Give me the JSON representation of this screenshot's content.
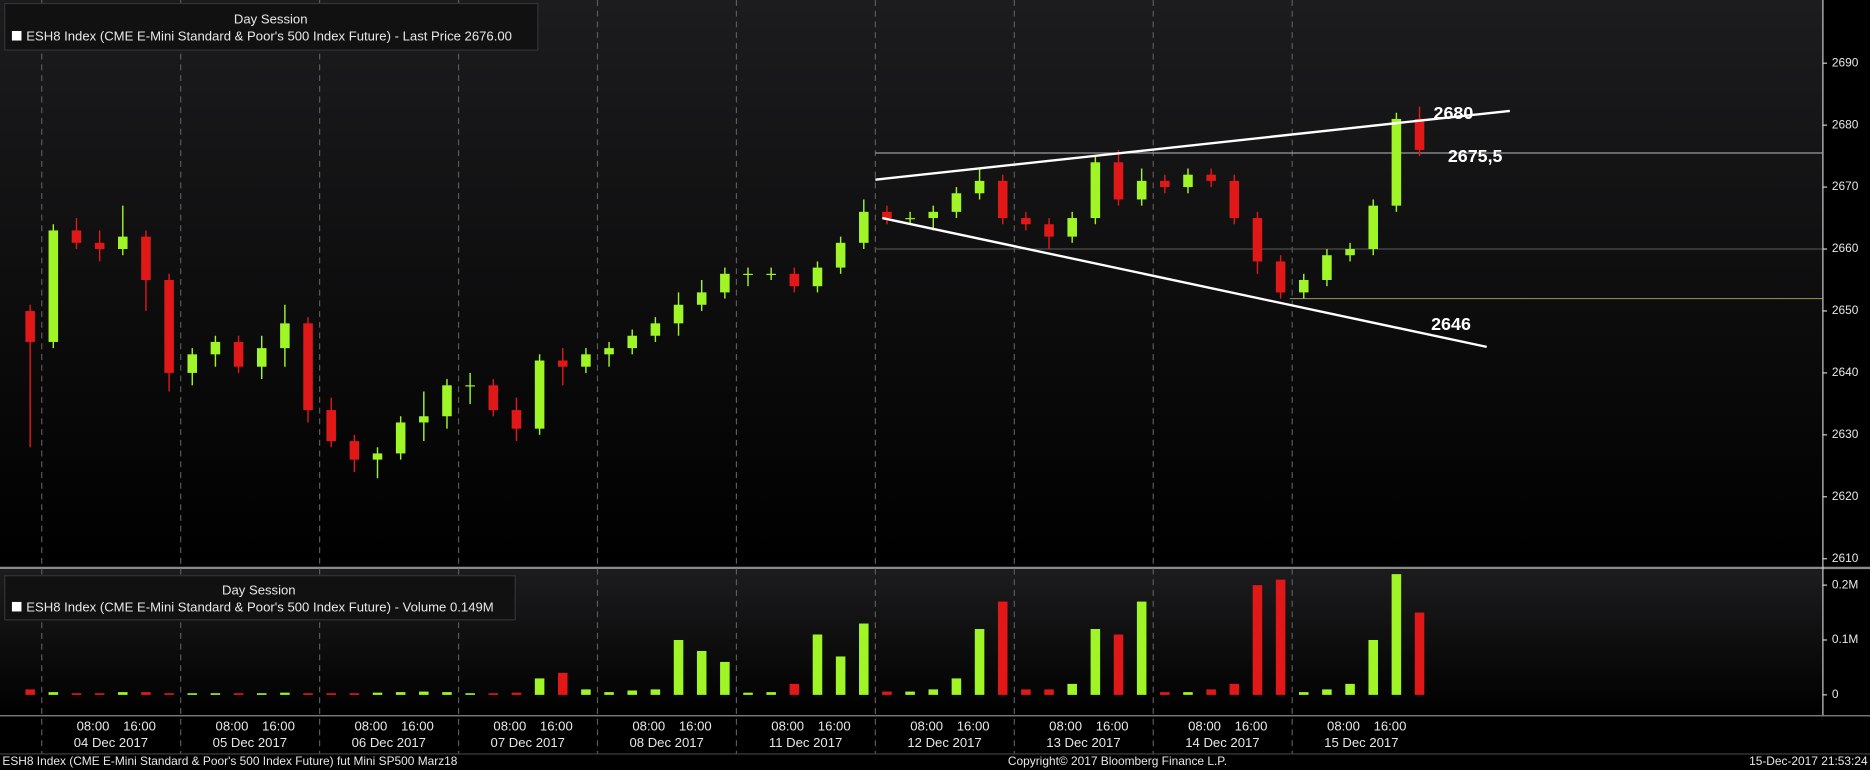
{
  "chart_data": [
    {
      "type": "candlestick",
      "legend_header": "Day Session",
      "legend": "ESH8 Index (CME E-Mini Standard & Poor's 500 Index Future) - Last Price 2676.00",
      "open": [
        2650,
        2645,
        2663,
        2661,
        2660,
        2662,
        2655,
        2640,
        2643,
        2645,
        2641,
        2644,
        2648,
        2634,
        2629,
        2626,
        2627,
        2632,
        2633,
        2638,
        2638,
        2634,
        2631,
        2642,
        2641,
        2643,
        2644,
        2646,
        2648,
        2651,
        2653,
        2656,
        2656,
        2656,
        2654,
        2657,
        2661,
        2666,
        2665,
        2665,
        2666,
        2669,
        2671,
        2665,
        2664,
        2662,
        2665,
        2674,
        2668,
        2671,
        2670,
        2672,
        2671,
        2665,
        2658,
        2653,
        2655,
        2659,
        2660,
        2667,
        2681
      ],
      "high": [
        2651,
        2664,
        2665,
        2663,
        2667,
        2663,
        2656,
        2644,
        2646,
        2646,
        2646,
        2651,
        2649,
        2636,
        2630,
        2628,
        2633,
        2637,
        2639,
        2640,
        2639,
        2636,
        2643,
        2644,
        2644,
        2645,
        2647,
        2649,
        2653,
        2655,
        2657,
        2657,
        2657,
        2657,
        2658,
        2662,
        2668,
        2667,
        2666,
        2667,
        2670,
        2673,
        2672,
        2666,
        2665,
        2666,
        2675,
        2676,
        2673,
        2672,
        2673,
        2673,
        2672,
        2666,
        2659,
        2656,
        2660,
        2661,
        2668,
        2682,
        2683
      ],
      "low": [
        2628,
        2644,
        2660,
        2658,
        2659,
        2650,
        2637,
        2638,
        2641,
        2640,
        2639,
        2641,
        2632,
        2628,
        2624,
        2623,
        2626,
        2629,
        2631,
        2635,
        2633,
        2629,
        2630,
        2638,
        2640,
        2641,
        2643,
        2645,
        2646,
        2650,
        2652,
        2654,
        2655,
        2653,
        2653,
        2656,
        2660,
        2664,
        2664,
        2663,
        2665,
        2668,
        2664,
        2663,
        2660,
        2661,
        2664,
        2667,
        2667,
        2669,
        2669,
        2670,
        2664,
        2656,
        2652,
        2652,
        2654,
        2658,
        2659,
        2666,
        2675
      ],
      "close": [
        2645,
        2663,
        2661,
        2660,
        2662,
        2655,
        2640,
        2643,
        2645,
        2641,
        2644,
        2648,
        2634,
        2629,
        2626,
        2627,
        2632,
        2633,
        2638,
        2638,
        2634,
        2631,
        2642,
        2641,
        2643,
        2644,
        2646,
        2648,
        2651,
        2653,
        2656,
        2656,
        2656,
        2654,
        2657,
        2661,
        2666,
        2665,
        2665,
        2666,
        2669,
        2671,
        2665,
        2664,
        2662,
        2665,
        2674,
        2668,
        2671,
        2670,
        2672,
        2671,
        2665,
        2658,
        2653,
        2655,
        2659,
        2660,
        2667,
        2681,
        2676
      ],
      "up_color": "#9ff526",
      "down_color": "#e01818",
      "ylim": [
        2608.8,
        2700.2
      ],
      "yticks": [
        2610,
        2620,
        2630,
        2640,
        2650,
        2660,
        2670,
        2680,
        2690
      ],
      "trendlines": [
        {
          "x": [
            36.5,
            63.9
          ],
          "y": [
            2671.2,
            2682.3
          ]
        },
        {
          "x": [
            36.8,
            62.9
          ],
          "y": [
            2665,
            2644.2
          ]
        }
      ],
      "levels": [
        {
          "value": 2675.5,
          "from": 36.5,
          "color": "#9a9a9a"
        },
        {
          "value": 2660,
          "from": 36.5,
          "color": "#4e4e4e"
        },
        {
          "value": 2652,
          "from": 54.4,
          "color": "#8a8a50"
        }
      ],
      "annotations": [
        "2680",
        "2675,5",
        "2646"
      ]
    },
    {
      "type": "volume",
      "legend_header": "Day Session",
      "legend": "ESH8 Index (CME E-Mini Standard & Poor's 500 Index Future) - Volume 0.149M",
      "values": [
        0.01,
        0.005,
        0.003,
        0.003,
        0.005,
        0.005,
        0.003,
        0.003,
        0.003,
        0.003,
        0.003,
        0.004,
        0.003,
        0.003,
        0.003,
        0.004,
        0.005,
        0.006,
        0.005,
        0.003,
        0.003,
        0.004,
        0.03,
        0.04,
        0.01,
        0.005,
        0.008,
        0.01,
        0.1,
        0.08,
        0.06,
        0.004,
        0.005,
        0.02,
        0.11,
        0.07,
        0.13,
        0.006,
        0.006,
        0.01,
        0.03,
        0.12,
        0.17,
        0.01,
        0.01,
        0.02,
        0.12,
        0.11,
        0.17,
        0.005,
        0.005,
        0.01,
        0.02,
        0.2,
        0.21,
        0.005,
        0.01,
        0.02,
        0.1,
        0.22,
        0.15
      ],
      "ylim": [
        -0.037,
        0.228
      ],
      "yticks": [
        0,
        {
          "value": 0.1,
          "label": "0.1M"
        },
        {
          "value": 0.2,
          "label": "0.2M"
        }
      ]
    }
  ],
  "x_axis": {
    "times": [
      "08:00",
      "16:00"
    ],
    "days": [
      "04 Dec 2017",
      "05 Dec 2017",
      "06 Dec 2017",
      "07 Dec 2017",
      "08 Dec 2017",
      "11 Dec 2017",
      "12 Dec 2017",
      "13 Dec 2017",
      "14 Dec 2017",
      "15 Dec 2017"
    ]
  },
  "footer": {
    "left": "ESH8 Index (CME E-Mini Standard & Poor's 500 Index Future) fut Mini SP500 Marz18",
    "center": "Copyright© 2017 Bloomberg Finance L.P.",
    "right": "15-Dec-2017 21:53:24"
  }
}
